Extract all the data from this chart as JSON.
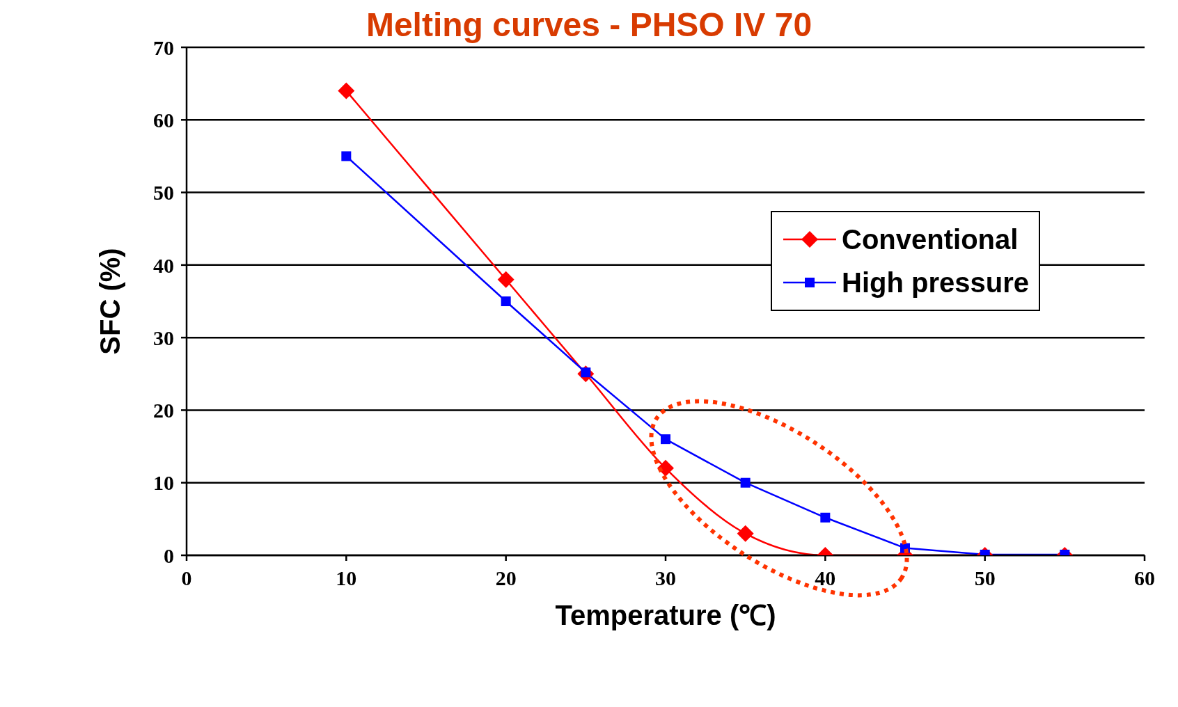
{
  "chart_data": {
    "type": "line",
    "title": "Melting curves - PHSO IV 70",
    "xlabel": "Temperature (℃)",
    "ylabel": "SFC (%)",
    "x": [
      10,
      20,
      25,
      30,
      35,
      40,
      45,
      50,
      55
    ],
    "series": [
      {
        "name": "Conventional",
        "color": "#ff0000",
        "marker": "diamond",
        "values": [
          64,
          38,
          25,
          12,
          3,
          0,
          0,
          0,
          0
        ]
      },
      {
        "name": "High pressure",
        "color": "#0000ff",
        "marker": "square",
        "values": [
          55,
          35,
          25.2,
          16,
          10,
          5.2,
          1,
          0.1,
          0.1
        ]
      }
    ],
    "xlim": [
      0,
      60
    ],
    "xticks": [
      0,
      10,
      20,
      30,
      40,
      50,
      60
    ],
    "ylim": [
      0,
      70
    ],
    "yticks": [
      0,
      10,
      20,
      30,
      40,
      50,
      60,
      70
    ],
    "grid": "y",
    "legend": "right"
  }
}
